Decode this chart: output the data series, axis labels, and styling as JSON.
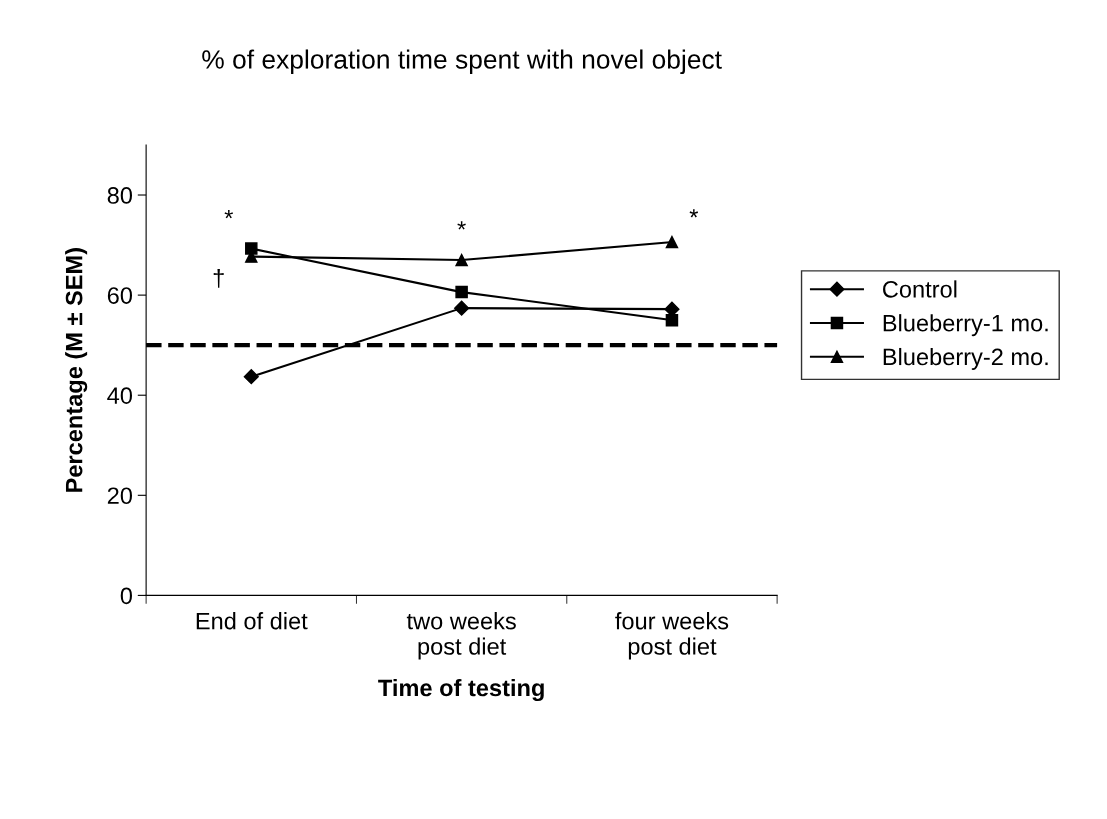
{
  "chart_data": {
    "type": "line",
    "title": "% of exploration time spent with novel object",
    "xlabel": "Time of testing",
    "ylabel": "Percentage (M ± SEM)",
    "categories": [
      "End of diet",
      "two weeks\npost diet",
      "four weeks\npost diet"
    ],
    "series": [
      {
        "name": "Control",
        "color": "#000000",
        "marker": "diamond",
        "values": [
          43.7,
          57.4,
          57.2
        ]
      },
      {
        "name": "Blueberry-1 mo.",
        "color": "#000000",
        "marker": "square",
        "values": [
          69.3,
          60.6,
          55.0
        ]
      },
      {
        "name": "Blueberry-2 mo.",
        "color": "#000000",
        "marker": "triangle",
        "values": [
          67.7,
          67.0,
          70.6
        ]
      }
    ],
    "ylim": [
      0,
      90
    ],
    "yticks": [
      0,
      20,
      40,
      60,
      80
    ],
    "grid": false,
    "legend": "right",
    "line_style": "solid",
    "ref_lines": [
      {
        "axis": "y",
        "value": 50,
        "color": "#000000",
        "line_style": "dashed"
      }
    ],
    "annotations": [
      "*",
      "†",
      "*",
      "*"
    ]
  }
}
